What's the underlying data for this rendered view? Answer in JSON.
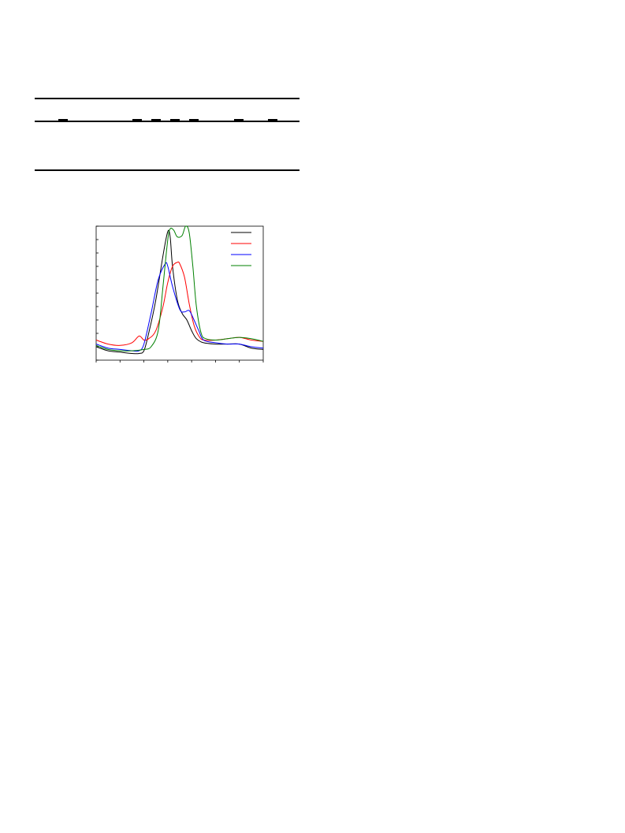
{
  "table": {
    "rules": [
      "top",
      "header-separator",
      "bottom"
    ]
  },
  "chart_data": {
    "type": "line",
    "title": "",
    "xlabel": "",
    "ylabel": "",
    "xlim": [
      0,
      7
    ],
    "ylim": [
      0,
      1
    ],
    "xticks": [
      0,
      1,
      2,
      3,
      4,
      5,
      6,
      7
    ],
    "yticks": [
      0.0,
      0.1,
      0.2,
      0.3,
      0.4,
      0.5,
      0.6,
      0.7,
      0.8,
      0.9,
      1.0
    ],
    "grid": false,
    "legend_position": "top-right",
    "series": [
      {
        "color": "#000000",
        "x": [
          0,
          0.5,
          1.0,
          1.5,
          1.8,
          2.0,
          2.2,
          2.5,
          2.8,
          3.0,
          3.1,
          3.2,
          3.4,
          3.6,
          3.8,
          4.0,
          4.2,
          4.5,
          5.0,
          5.5,
          6.0,
          6.5,
          7.0
        ],
        "y": [
          0.1,
          0.07,
          0.06,
          0.05,
          0.05,
          0.07,
          0.2,
          0.45,
          0.78,
          0.96,
          0.92,
          0.7,
          0.45,
          0.35,
          0.3,
          0.22,
          0.16,
          0.13,
          0.12,
          0.12,
          0.12,
          0.09,
          0.08
        ]
      },
      {
        "color": "#ff0000",
        "x": [
          0,
          0.5,
          1.0,
          1.5,
          1.8,
          2.0,
          2.2,
          2.5,
          2.8,
          3.0,
          3.2,
          3.4,
          3.5,
          3.7,
          3.9,
          4.1,
          4.3,
          4.5,
          5.0,
          5.5,
          6.0,
          6.5,
          7.0
        ],
        "y": [
          0.15,
          0.12,
          0.11,
          0.13,
          0.18,
          0.15,
          0.16,
          0.22,
          0.4,
          0.58,
          0.7,
          0.73,
          0.72,
          0.62,
          0.42,
          0.26,
          0.18,
          0.15,
          0.15,
          0.16,
          0.17,
          0.15,
          0.14
        ]
      },
      {
        "color": "#0000ff",
        "x": [
          0,
          0.5,
          1.0,
          1.5,
          1.8,
          2.0,
          2.3,
          2.6,
          2.9,
          3.0,
          3.2,
          3.5,
          3.7,
          3.9,
          4.1,
          4.3,
          4.5,
          5.0,
          5.5,
          6.0,
          6.5,
          7.0
        ],
        "y": [
          0.12,
          0.09,
          0.08,
          0.07,
          0.07,
          0.12,
          0.35,
          0.6,
          0.72,
          0.7,
          0.55,
          0.38,
          0.36,
          0.37,
          0.3,
          0.22,
          0.15,
          0.13,
          0.12,
          0.12,
          0.1,
          0.09
        ]
      },
      {
        "color": "#008000",
        "x": [
          0,
          0.5,
          1.0,
          1.5,
          2.0,
          2.3,
          2.6,
          2.8,
          3.0,
          3.1,
          3.25,
          3.4,
          3.6,
          3.75,
          3.9,
          4.05,
          4.2,
          4.4,
          4.6,
          5.0,
          5.5,
          6.0,
          6.5,
          7.0
        ],
        "y": [
          0.11,
          0.08,
          0.07,
          0.07,
          0.08,
          0.1,
          0.22,
          0.55,
          0.9,
          0.98,
          0.97,
          0.92,
          0.93,
          1.0,
          0.95,
          0.7,
          0.4,
          0.2,
          0.16,
          0.15,
          0.16,
          0.17,
          0.16,
          0.14
        ]
      }
    ]
  }
}
